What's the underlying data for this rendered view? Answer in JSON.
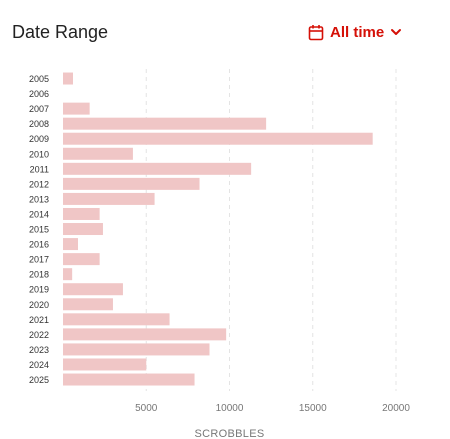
{
  "header": {
    "title": "Date Range",
    "range_label": "All time",
    "calendar_icon": "calendar-icon",
    "dropdown_icon": "chevron-down-icon"
  },
  "colors": {
    "accent": "#d51007",
    "bar": "#f0c6c6",
    "grid": "#e4e4e4",
    "axis_text": "#777777",
    "label_text": "#333333"
  },
  "chart_data": {
    "type": "bar",
    "orientation": "horizontal",
    "categories": [
      "2005",
      "2006",
      "2007",
      "2008",
      "2009",
      "2010",
      "2011",
      "2012",
      "2013",
      "2014",
      "2015",
      "2016",
      "2017",
      "2018",
      "2019",
      "2020",
      "2021",
      "2022",
      "2023",
      "2024",
      "2025"
    ],
    "values": [
      600,
      0,
      1600,
      12200,
      18600,
      4200,
      11300,
      8200,
      5500,
      2200,
      2400,
      900,
      2200,
      550,
      3600,
      3000,
      6400,
      9800,
      8800,
      5000,
      7900
    ],
    "xlabel": "SCROBBLES",
    "ylabel": "",
    "xlim": [
      0,
      20000
    ],
    "xticks": [
      "5000",
      "10000",
      "15000",
      "20000"
    ],
    "grid": true,
    "legend": "none"
  }
}
